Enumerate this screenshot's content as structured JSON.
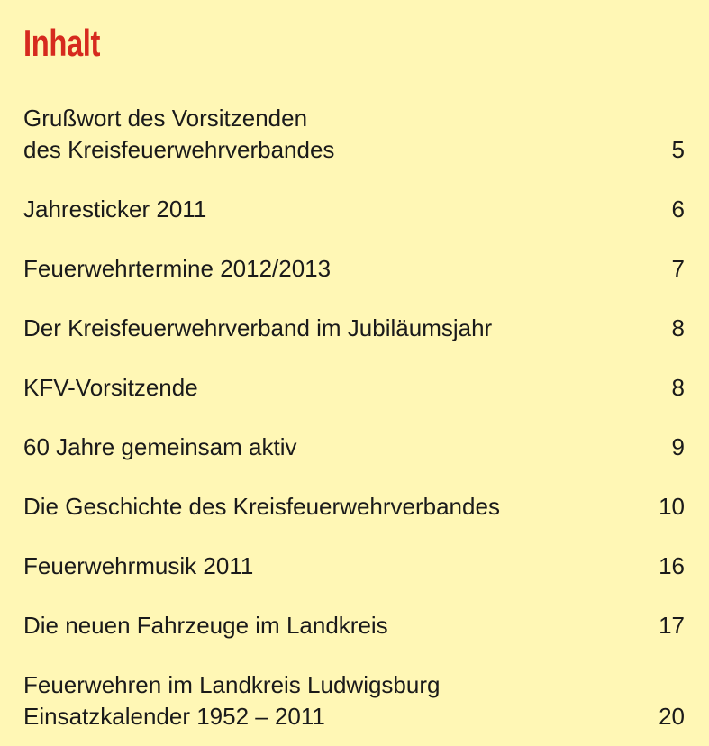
{
  "header": {
    "title": "Inhalt"
  },
  "entries": [
    {
      "lines": [
        "Grußwort des Vorsitzenden",
        "des Kreisfeuerwehrverbandes"
      ],
      "page": 5
    },
    {
      "lines": [
        "Jahresticker 2011"
      ],
      "page": 6
    },
    {
      "lines": [
        "Feuerwehrtermine 2012/2013"
      ],
      "page": 7
    },
    {
      "lines": [
        "Der Kreisfeuerwehrverband im Jubiläumsjahr"
      ],
      "page": 8
    },
    {
      "lines": [
        "KFV-Vorsitzende"
      ],
      "page": 8
    },
    {
      "lines": [
        "60 Jahre gemeinsam aktiv"
      ],
      "page": 9
    },
    {
      "lines": [
        "Die Geschichte des Kreisfeuerwehrverbandes"
      ],
      "page": 10
    },
    {
      "lines": [
        "Feuerwehrmusik 2011"
      ],
      "page": 16
    },
    {
      "lines": [
        "Die neuen Fahrzeuge im Landkreis"
      ],
      "page": 17
    },
    {
      "lines": [
        "Feuerwehren im Landkreis Ludwigsburg",
        "Einsatzkalender 1952 – 2011"
      ],
      "page": 20
    }
  ]
}
